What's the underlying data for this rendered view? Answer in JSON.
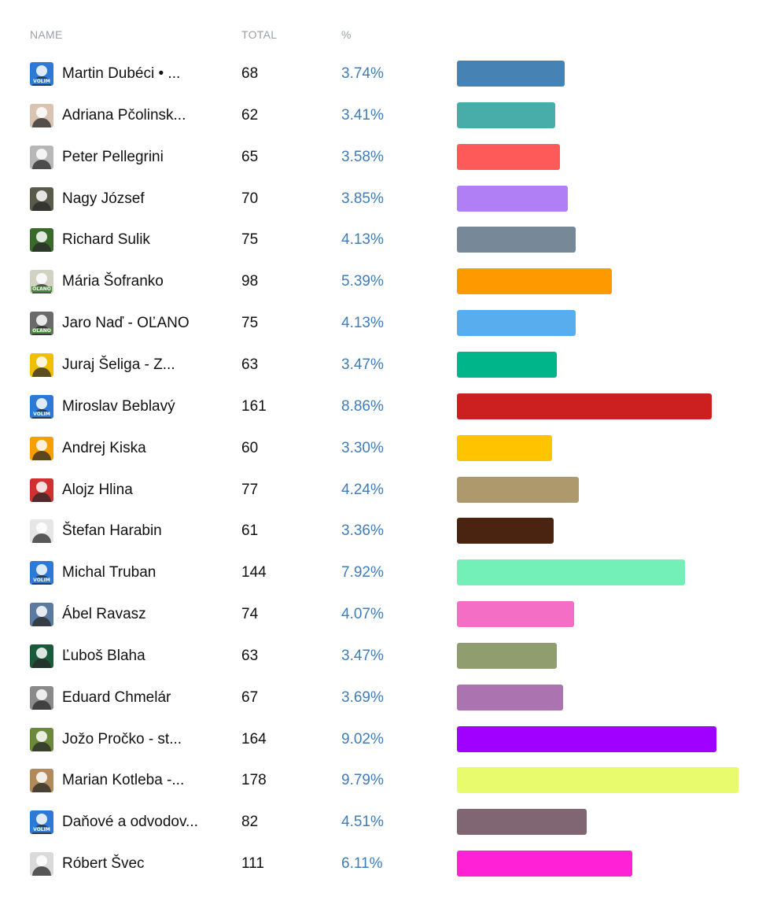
{
  "header": {
    "name": "NAME",
    "total": "TOTAL",
    "pct": "%"
  },
  "chart_data": {
    "type": "bar",
    "orientation": "horizontal",
    "xlim": [
      0,
      178
    ],
    "categories": [
      "Martin Dubéci • ...",
      "Adriana Pčolinsk...",
      "Peter Pellegrini",
      "Nagy József",
      "Richard Sulik",
      "Mária Šofranko",
      "Jaro Naď - OĽANO",
      "Juraj Šeliga - Z...",
      "Miroslav Beblavý",
      "Andrej Kiska",
      "Alojz Hlina",
      "Štefan Harabin",
      "Michal Truban",
      "Ábel Ravasz",
      "Ľuboš Blaha",
      "Eduard Chmelár",
      "Jožo Pročko - st...",
      "Marian Kotleba -...",
      "Daňové a odvodov...",
      "Róbert Švec"
    ],
    "values": [
      68,
      62,
      65,
      70,
      75,
      98,
      75,
      63,
      161,
      60,
      77,
      61,
      144,
      74,
      63,
      67,
      164,
      178,
      82,
      111
    ],
    "percent_labels": [
      "3.74%",
      "3.41%",
      "3.58%",
      "3.85%",
      "4.13%",
      "5.39%",
      "4.13%",
      "3.47%",
      "8.86%",
      "3.30%",
      "4.24%",
      "3.36%",
      "7.92%",
      "4.07%",
      "3.47%",
      "3.69%",
      "9.02%",
      "9.79%",
      "4.51%",
      "6.11%"
    ],
    "colors": [
      "#4682b4",
      "#48ada8",
      "#ff5a5a",
      "#b07ff5",
      "#778899",
      "#ff9900",
      "#58adee",
      "#00b589",
      "#cc2020",
      "#ffc400",
      "#ae996c",
      "#4a2410",
      "#72f0b8",
      "#f46ec5",
      "#909d6e",
      "#ab73b0",
      "#a000ff",
      "#e8fb6d",
      "#7f6672",
      "#ff22d4"
    ]
  },
  "avatars": [
    {
      "icon": "profile-photo-icon",
      "bg": "#2e78d6",
      "badge": "VOLIM",
      "badge_color": "#2e78d6"
    },
    {
      "icon": "profile-photo-icon",
      "bg": "#d8c4b0",
      "badge": "",
      "badge_color": ""
    },
    {
      "icon": "profile-photo-icon",
      "bg": "#b7b7b7",
      "badge": "",
      "badge_color": ""
    },
    {
      "icon": "profile-photo-icon",
      "bg": "#5a5a4a",
      "badge": "",
      "badge_color": ""
    },
    {
      "icon": "profile-photo-icon",
      "bg": "#3a6a2a",
      "badge": "",
      "badge_color": ""
    },
    {
      "icon": "profile-photo-icon",
      "bg": "#d2d2c4",
      "badge": "OĽANO",
      "badge_color": "#4a8a3a"
    },
    {
      "icon": "profile-photo-icon",
      "bg": "#6a6a6a",
      "badge": "OĽANO",
      "badge_color": "#4a8a3a"
    },
    {
      "icon": "profile-photo-icon",
      "bg": "#f0c000",
      "badge": "",
      "badge_color": ""
    },
    {
      "icon": "profile-photo-icon",
      "bg": "#2e78d6",
      "badge": "VOLIM",
      "badge_color": "#2e78d6"
    },
    {
      "icon": "profile-photo-icon",
      "bg": "#f5a000",
      "badge": "",
      "badge_color": ""
    },
    {
      "icon": "profile-photo-icon",
      "bg": "#d03030",
      "badge": "",
      "badge_color": ""
    },
    {
      "icon": "profile-photo-icon",
      "bg": "#e6e6e6",
      "badge": "",
      "badge_color": ""
    },
    {
      "icon": "profile-photo-icon",
      "bg": "#2e78d6",
      "badge": "VOLIM",
      "badge_color": "#2e78d6"
    },
    {
      "icon": "profile-photo-icon",
      "bg": "#5a7aa0",
      "badge": "",
      "badge_color": ""
    },
    {
      "icon": "profile-photo-icon",
      "bg": "#1a5a3a",
      "badge": "",
      "badge_color": ""
    },
    {
      "icon": "profile-photo-icon",
      "bg": "#8a8a8a",
      "badge": "",
      "badge_color": ""
    },
    {
      "icon": "profile-photo-icon",
      "bg": "#6a8a3a",
      "badge": "",
      "badge_color": ""
    },
    {
      "icon": "profile-photo-icon",
      "bg": "#b08a5a",
      "badge": "",
      "badge_color": ""
    },
    {
      "icon": "profile-photo-icon",
      "bg": "#2e78d6",
      "badge": "VOLIM",
      "badge_color": "#2e78d6"
    },
    {
      "icon": "profile-photo-icon",
      "bg": "#dadada",
      "badge": "",
      "badge_color": ""
    }
  ]
}
